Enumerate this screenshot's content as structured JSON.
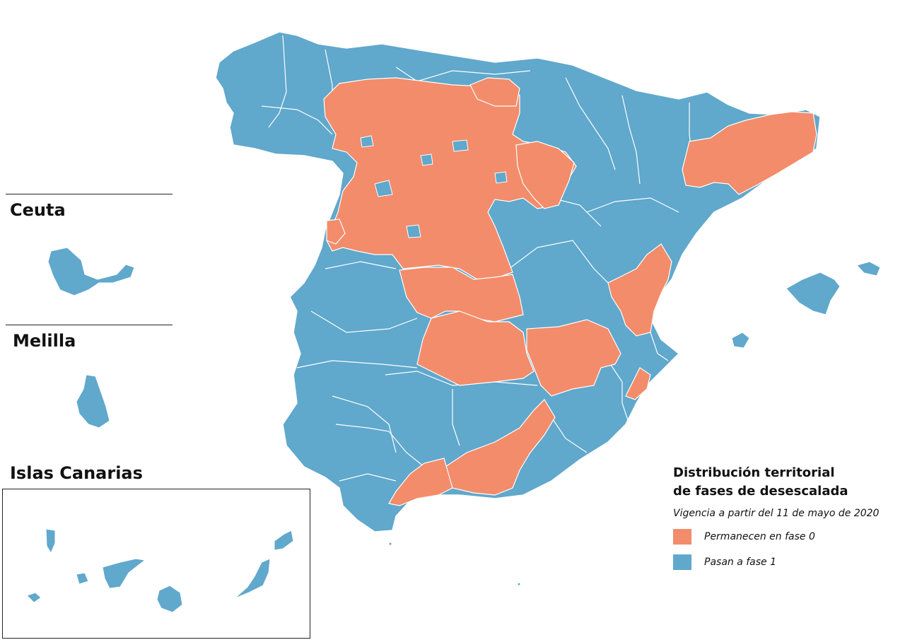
{
  "colors": {
    "phase0": "#f28c6b",
    "phase1": "#60a8cc",
    "border": "#ffffff",
    "rule": "#222222"
  },
  "insets": {
    "ceuta_label": "Ceuta",
    "melilla_label": "Melilla",
    "canarias_label": "Islas Canarias"
  },
  "legend": {
    "title_line1": "Distribución territorial",
    "title_line2": "de fases de desescalada",
    "subtitle": "Vigencia a partir del 11 de mayo de 2020",
    "items": [
      {
        "label": "Permanecen en fase 0",
        "color": "#f28c6b"
      },
      {
        "label": "Pasan a fase 1",
        "color": "#60a8cc"
      }
    ]
  }
}
